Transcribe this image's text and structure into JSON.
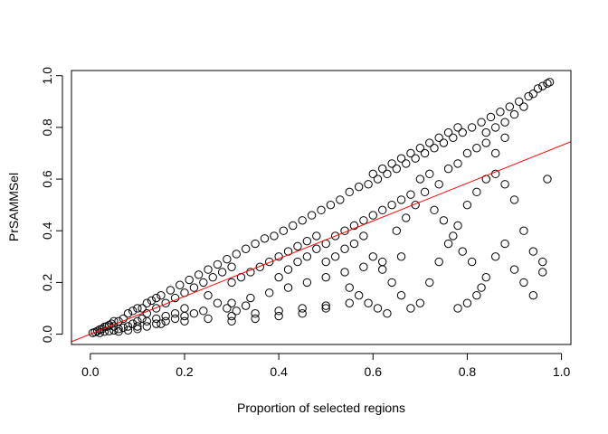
{
  "chart_data": {
    "type": "scatter",
    "title": "",
    "xlabel": "Proportion of selected regions",
    "ylabel": "PrSAMMSel",
    "xlim": [
      -0.04,
      1.02
    ],
    "ylim": [
      -0.04,
      1.02
    ],
    "x_ticks": [
      0.0,
      0.2,
      0.4,
      0.6,
      0.8,
      1.0
    ],
    "x_tick_labels": [
      "0.0",
      "0.2",
      "0.4",
      "0.6",
      "0.8",
      "1.0"
    ],
    "y_ticks": [
      0.0,
      0.2,
      0.4,
      0.6,
      0.8,
      1.0
    ],
    "y_tick_labels": [
      "0.0",
      "0.2",
      "0.4",
      "0.6",
      "0.8",
      "1.0"
    ],
    "grid": false,
    "legend": "none",
    "marker": "open-circle",
    "point_color": "#000000",
    "fit_line": {
      "color": "#ff0000",
      "intercept": 0.0,
      "slope": 0.73
    },
    "series": [
      {
        "values_xy": [
          [
            0.005,
            0.005
          ],
          [
            0.01,
            0.008
          ],
          [
            0.015,
            0.012
          ],
          [
            0.02,
            0.018
          ],
          [
            0.025,
            0.02
          ],
          [
            0.03,
            0.028
          ],
          [
            0.035,
            0.03
          ],
          [
            0.04,
            0.035
          ],
          [
            0.045,
            0.04
          ],
          [
            0.05,
            0.05
          ],
          [
            0.02,
            0.005
          ],
          [
            0.03,
            0.01
          ],
          [
            0.04,
            0.012
          ],
          [
            0.05,
            0.015
          ],
          [
            0.06,
            0.02
          ],
          [
            0.07,
            0.025
          ],
          [
            0.08,
            0.03
          ],
          [
            0.09,
            0.04
          ],
          [
            0.1,
            0.05
          ],
          [
            0.11,
            0.06
          ],
          [
            0.05,
            0.03
          ],
          [
            0.06,
            0.05
          ],
          [
            0.07,
            0.06
          ],
          [
            0.08,
            0.08
          ],
          [
            0.09,
            0.09
          ],
          [
            0.1,
            0.1
          ],
          [
            0.11,
            0.1
          ],
          [
            0.12,
            0.12
          ],
          [
            0.13,
            0.13
          ],
          [
            0.14,
            0.14
          ],
          [
            0.06,
            0.01
          ],
          [
            0.08,
            0.015
          ],
          [
            0.1,
            0.02
          ],
          [
            0.12,
            0.03
          ],
          [
            0.14,
            0.04
          ],
          [
            0.16,
            0.05
          ],
          [
            0.18,
            0.06
          ],
          [
            0.2,
            0.07
          ],
          [
            0.22,
            0.08
          ],
          [
            0.24,
            0.09
          ],
          [
            0.12,
            0.08
          ],
          [
            0.14,
            0.1
          ],
          [
            0.16,
            0.12
          ],
          [
            0.18,
            0.14
          ],
          [
            0.2,
            0.16
          ],
          [
            0.22,
            0.18
          ],
          [
            0.24,
            0.2
          ],
          [
            0.26,
            0.22
          ],
          [
            0.28,
            0.24
          ],
          [
            0.3,
            0.26
          ],
          [
            0.15,
            0.15
          ],
          [
            0.17,
            0.17
          ],
          [
            0.19,
            0.19
          ],
          [
            0.21,
            0.21
          ],
          [
            0.23,
            0.23
          ],
          [
            0.25,
            0.25
          ],
          [
            0.27,
            0.27
          ],
          [
            0.29,
            0.29
          ],
          [
            0.31,
            0.31
          ],
          [
            0.33,
            0.33
          ],
          [
            0.1,
            0.03
          ],
          [
            0.15,
            0.04
          ],
          [
            0.2,
            0.05
          ],
          [
            0.25,
            0.06
          ],
          [
            0.3,
            0.07
          ],
          [
            0.35,
            0.08
          ],
          [
            0.4,
            0.09
          ],
          [
            0.45,
            0.1
          ],
          [
            0.5,
            0.11
          ],
          [
            0.55,
            0.12
          ],
          [
            0.3,
            0.2
          ],
          [
            0.32,
            0.22
          ],
          [
            0.34,
            0.24
          ],
          [
            0.36,
            0.26
          ],
          [
            0.38,
            0.28
          ],
          [
            0.4,
            0.3
          ],
          [
            0.42,
            0.32
          ],
          [
            0.44,
            0.34
          ],
          [
            0.46,
            0.36
          ],
          [
            0.48,
            0.38
          ],
          [
            0.35,
            0.35
          ],
          [
            0.37,
            0.37
          ],
          [
            0.39,
            0.38
          ],
          [
            0.41,
            0.4
          ],
          [
            0.43,
            0.42
          ],
          [
            0.45,
            0.44
          ],
          [
            0.47,
            0.46
          ],
          [
            0.49,
            0.48
          ],
          [
            0.51,
            0.5
          ],
          [
            0.53,
            0.52
          ],
          [
            0.3,
            0.12
          ],
          [
            0.34,
            0.14
          ],
          [
            0.38,
            0.16
          ],
          [
            0.42,
            0.18
          ],
          [
            0.46,
            0.2
          ],
          [
            0.5,
            0.22
          ],
          [
            0.54,
            0.24
          ],
          [
            0.58,
            0.26
          ],
          [
            0.62,
            0.28
          ],
          [
            0.66,
            0.3
          ],
          [
            0.5,
            0.35
          ],
          [
            0.52,
            0.38
          ],
          [
            0.54,
            0.4
          ],
          [
            0.56,
            0.42
          ],
          [
            0.58,
            0.44
          ],
          [
            0.6,
            0.46
          ],
          [
            0.62,
            0.48
          ],
          [
            0.64,
            0.5
          ],
          [
            0.66,
            0.52
          ],
          [
            0.68,
            0.54
          ],
          [
            0.55,
            0.55
          ],
          [
            0.57,
            0.57
          ],
          [
            0.59,
            0.58
          ],
          [
            0.61,
            0.6
          ],
          [
            0.63,
            0.62
          ],
          [
            0.65,
            0.64
          ],
          [
            0.67,
            0.66
          ],
          [
            0.69,
            0.68
          ],
          [
            0.71,
            0.7
          ],
          [
            0.73,
            0.72
          ],
          [
            0.75,
            0.74
          ],
          [
            0.77,
            0.76
          ],
          [
            0.79,
            0.78
          ],
          [
            0.81,
            0.8
          ],
          [
            0.83,
            0.82
          ],
          [
            0.85,
            0.84
          ],
          [
            0.87,
            0.86
          ],
          [
            0.89,
            0.88
          ],
          [
            0.91,
            0.9
          ],
          [
            0.93,
            0.92
          ],
          [
            0.94,
            0.93
          ],
          [
            0.95,
            0.95
          ],
          [
            0.96,
            0.96
          ],
          [
            0.97,
            0.97
          ],
          [
            0.975,
            0.975
          ],
          [
            0.9,
            0.85
          ],
          [
            0.92,
            0.88
          ],
          [
            0.88,
            0.82
          ],
          [
            0.86,
            0.8
          ],
          [
            0.84,
            0.78
          ],
          [
            0.6,
            0.3
          ],
          [
            0.62,
            0.25
          ],
          [
            0.64,
            0.2
          ],
          [
            0.66,
            0.15
          ],
          [
            0.68,
            0.1
          ],
          [
            0.7,
            0.12
          ],
          [
            0.72,
            0.2
          ],
          [
            0.74,
            0.28
          ],
          [
            0.76,
            0.35
          ],
          [
            0.78,
            0.42
          ],
          [
            0.8,
            0.5
          ],
          [
            0.82,
            0.55
          ],
          [
            0.84,
            0.6
          ],
          [
            0.86,
            0.62
          ],
          [
            0.88,
            0.58
          ],
          [
            0.9,
            0.52
          ],
          [
            0.92,
            0.4
          ],
          [
            0.94,
            0.32
          ],
          [
            0.96,
            0.28
          ],
          [
            0.97,
            0.6
          ],
          [
            0.78,
            0.1
          ],
          [
            0.8,
            0.12
          ],
          [
            0.82,
            0.15
          ],
          [
            0.84,
            0.22
          ],
          [
            0.86,
            0.3
          ],
          [
            0.88,
            0.35
          ],
          [
            0.9,
            0.25
          ],
          [
            0.92,
            0.2
          ],
          [
            0.94,
            0.15
          ],
          [
            0.96,
            0.24
          ],
          [
            0.7,
            0.6
          ],
          [
            0.72,
            0.62
          ],
          [
            0.74,
            0.58
          ],
          [
            0.76,
            0.64
          ],
          [
            0.78,
            0.66
          ],
          [
            0.8,
            0.7
          ],
          [
            0.82,
            0.72
          ],
          [
            0.84,
            0.74
          ],
          [
            0.86,
            0.7
          ],
          [
            0.88,
            0.76
          ],
          [
            0.65,
            0.4
          ],
          [
            0.67,
            0.45
          ],
          [
            0.69,
            0.5
          ],
          [
            0.71,
            0.55
          ],
          [
            0.73,
            0.48
          ],
          [
            0.75,
            0.44
          ],
          [
            0.77,
            0.38
          ],
          [
            0.79,
            0.32
          ],
          [
            0.81,
            0.28
          ],
          [
            0.83,
            0.18
          ],
          [
            0.55,
            0.18
          ],
          [
            0.57,
            0.15
          ],
          [
            0.59,
            0.12
          ],
          [
            0.61,
            0.1
          ],
          [
            0.63,
            0.08
          ],
          [
            0.5,
            0.1
          ],
          [
            0.45,
            0.08
          ],
          [
            0.4,
            0.07
          ],
          [
            0.35,
            0.06
          ],
          [
            0.3,
            0.05
          ],
          [
            0.25,
            0.15
          ],
          [
            0.27,
            0.12
          ],
          [
            0.29,
            0.1
          ],
          [
            0.31,
            0.09
          ],
          [
            0.33,
            0.11
          ],
          [
            0.2,
            0.1
          ],
          [
            0.18,
            0.08
          ],
          [
            0.16,
            0.07
          ],
          [
            0.14,
            0.06
          ],
          [
            0.12,
            0.05
          ],
          [
            0.4,
            0.22
          ],
          [
            0.42,
            0.25
          ],
          [
            0.44,
            0.28
          ],
          [
            0.46,
            0.3
          ],
          [
            0.48,
            0.33
          ],
          [
            0.5,
            0.28
          ],
          [
            0.52,
            0.3
          ],
          [
            0.54,
            0.33
          ],
          [
            0.56,
            0.35
          ],
          [
            0.58,
            0.38
          ],
          [
            0.6,
            0.62
          ],
          [
            0.62,
            0.64
          ],
          [
            0.64,
            0.66
          ],
          [
            0.66,
            0.68
          ],
          [
            0.68,
            0.7
          ],
          [
            0.7,
            0.72
          ],
          [
            0.72,
            0.74
          ],
          [
            0.74,
            0.76
          ],
          [
            0.76,
            0.78
          ],
          [
            0.78,
            0.8
          ]
        ]
      }
    ]
  }
}
